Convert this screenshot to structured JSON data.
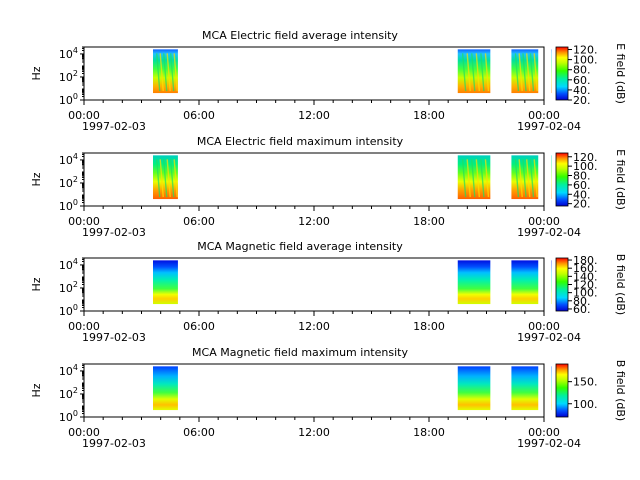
{
  "chart_data": [
    {
      "type": "heatmap",
      "title": "MCA  Electric field average intensity",
      "ylabel": "Hz",
      "colorbar_label": "E field (dB)",
      "colorbar_ticks": [
        "20.",
        "40.",
        "60.",
        "80.",
        "100.",
        "120."
      ],
      "colorbar_range": [
        20,
        125
      ],
      "y_scale": "log",
      "ylim": [
        1,
        40000
      ],
      "yticks": [
        {
          "base": "10",
          "exp": "0"
        },
        {
          "base": "10",
          "exp": "2"
        },
        {
          "base": "10",
          "exp": "4"
        }
      ],
      "x_range_hours": [
        0,
        24
      ],
      "xticks": [
        "00:00",
        "06:00",
        "12:00",
        "18:00",
        "00:00"
      ],
      "x_dates": [
        "1997-02-03",
        "1997-02-04"
      ],
      "data_intervals_hours": [
        [
          3.6,
          4.9
        ],
        [
          19.5,
          21.2
        ],
        [
          22.3,
          23.7
        ],
        [
          24.4,
          24.55
        ]
      ],
      "intensity_profile": "high (red-orange) at low frequencies, green-yellow mid band, mixed blue-cyan near top"
    },
    {
      "type": "heatmap",
      "title": "MCA  Electric field maximum intensity",
      "ylabel": "Hz",
      "colorbar_label": "E field (dB)",
      "colorbar_ticks": [
        "20.",
        "40.",
        "60.",
        "80.",
        "100.",
        "120."
      ],
      "colorbar_range": [
        15,
        128
      ],
      "y_scale": "log",
      "ylim": [
        1,
        40000
      ],
      "yticks": [
        {
          "base": "10",
          "exp": "0"
        },
        {
          "base": "10",
          "exp": "2"
        },
        {
          "base": "10",
          "exp": "4"
        }
      ],
      "x_range_hours": [
        0,
        24
      ],
      "xticks": [
        "00:00",
        "06:00",
        "12:00",
        "18:00",
        "00:00"
      ],
      "x_dates": [
        "1997-02-03",
        "1997-02-04"
      ],
      "data_intervals_hours": [
        [
          3.6,
          4.9
        ],
        [
          19.5,
          21.2
        ],
        [
          22.3,
          23.7
        ],
        [
          24.4,
          24.55
        ]
      ],
      "intensity_profile": "high (red-orange) at low frequencies, yellow-green mid band, green-cyan near top"
    },
    {
      "type": "heatmap",
      "title": "MCA  Magnetic field average intensity",
      "ylabel": "Hz",
      "colorbar_label": "B field (dB)",
      "colorbar_ticks": [
        "60.",
        "80.",
        "100.",
        "120.",
        "140.",
        "160.",
        "180."
      ],
      "colorbar_range": [
        55,
        185
      ],
      "y_scale": "log",
      "ylim": [
        1,
        40000
      ],
      "yticks": [
        {
          "base": "10",
          "exp": "0"
        },
        {
          "base": "10",
          "exp": "2"
        },
        {
          "base": "10",
          "exp": "4"
        }
      ],
      "x_range_hours": [
        0,
        24
      ],
      "xticks": [
        "00:00",
        "06:00",
        "12:00",
        "18:00",
        "00:00"
      ],
      "x_dates": [
        "1997-02-03",
        "1997-02-04"
      ],
      "data_intervals_hours": [
        [
          3.6,
          4.9
        ],
        [
          19.5,
          21.2
        ],
        [
          22.3,
          23.7
        ],
        [
          24.4,
          24.55
        ]
      ],
      "intensity_profile": "blue at high frequencies, cyan-green mid band, yellow-orange at low frequencies"
    },
    {
      "type": "heatmap",
      "title": "MCA  Magnetic field maximum intensity",
      "ylabel": "Hz",
      "colorbar_label": "B field (dB)",
      "colorbar_ticks": [
        "100.",
        "150."
      ],
      "colorbar_range": [
        70,
        190
      ],
      "y_scale": "log",
      "ylim": [
        1,
        40000
      ],
      "yticks": [
        {
          "base": "10",
          "exp": "0"
        },
        {
          "base": "10",
          "exp": "2"
        },
        {
          "base": "10",
          "exp": "4"
        }
      ],
      "x_range_hours": [
        0,
        24
      ],
      "xticks": [
        "00:00",
        "06:00",
        "12:00",
        "18:00",
        "00:00"
      ],
      "x_dates": [
        "1997-02-03",
        "1997-02-04"
      ],
      "data_intervals_hours": [
        [
          3.6,
          4.9
        ],
        [
          19.5,
          21.2
        ],
        [
          22.3,
          23.7
        ],
        [
          24.4,
          24.55
        ]
      ],
      "intensity_profile": "blue at high frequencies, cyan-green mid band, yellow-orange at low frequencies"
    }
  ]
}
